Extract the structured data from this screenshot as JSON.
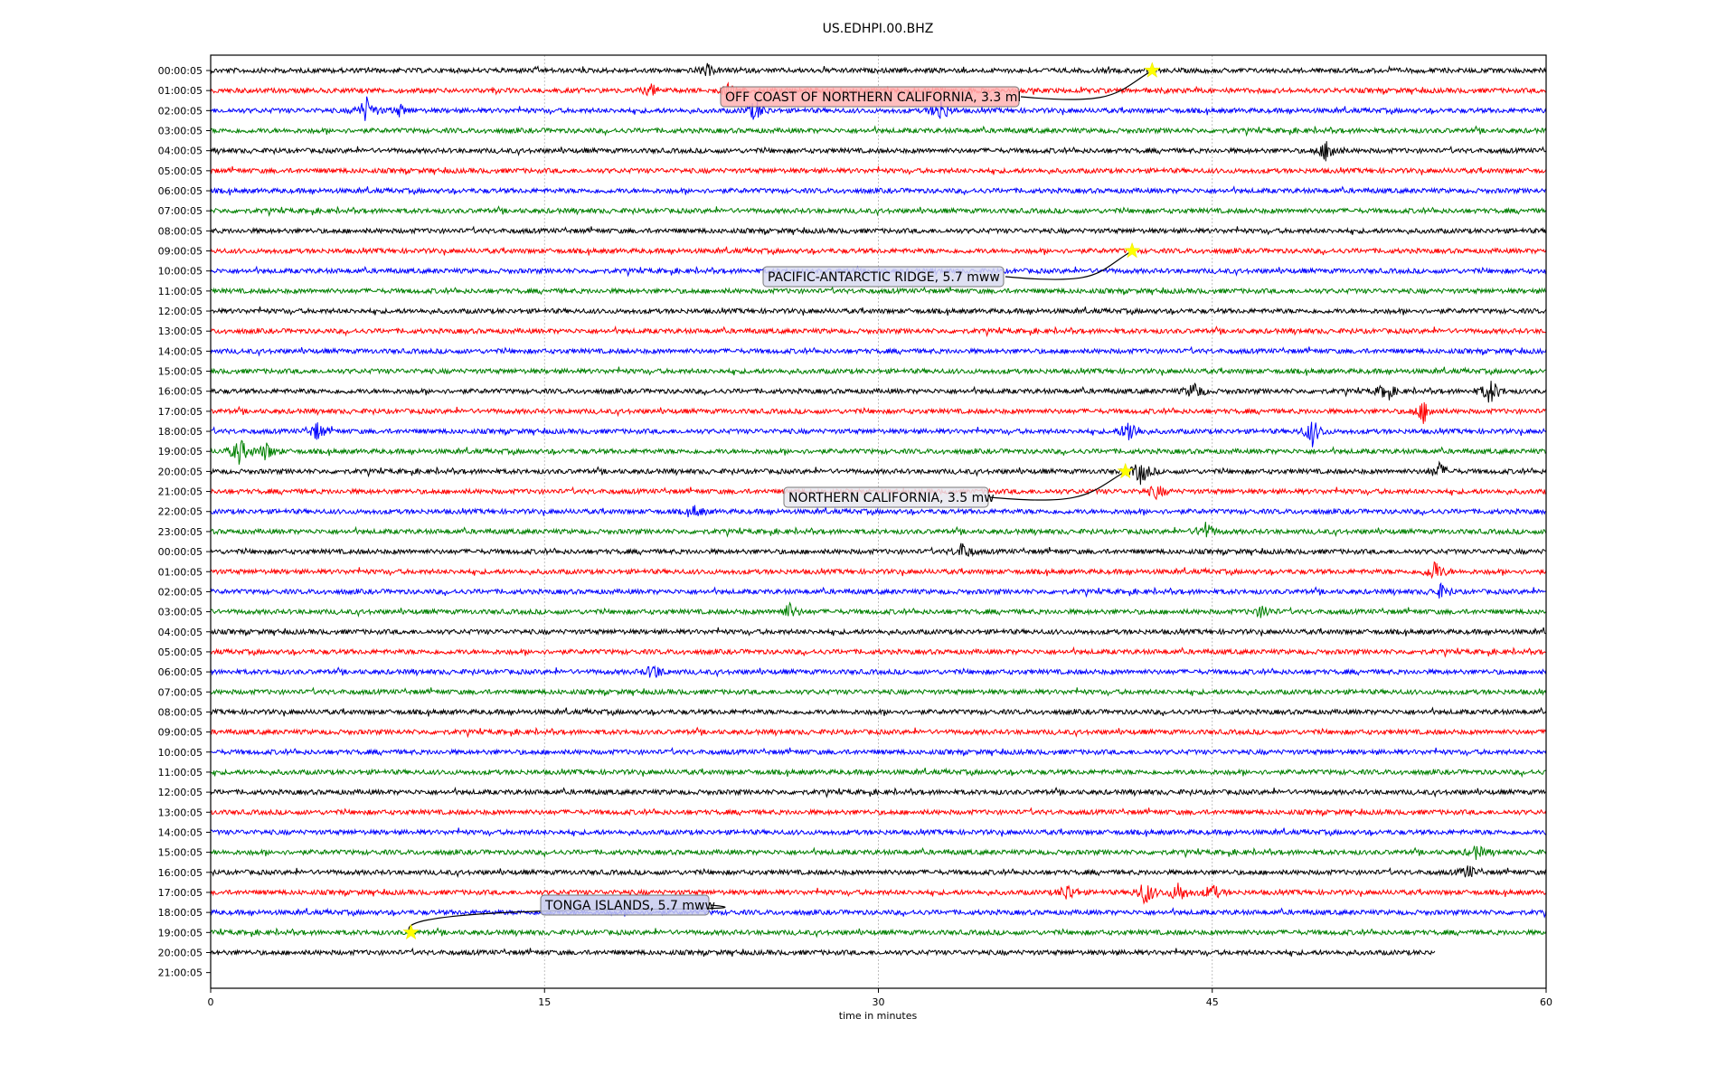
{
  "chart_data": {
    "type": "line",
    "title": "US.EDHPI.00.BHZ",
    "xlabel": "time in minutes",
    "ylabel": "",
    "xlim": [
      0,
      60
    ],
    "xticks": [
      "0",
      "15",
      "30",
      "45",
      "60"
    ],
    "grid": "vertical dotted at x ticks",
    "row_labels": [
      "00:00:05",
      "01:00:05",
      "02:00:05",
      "03:00:05",
      "04:00:05",
      "05:00:05",
      "06:00:05",
      "07:00:05",
      "08:00:05",
      "09:00:05",
      "10:00:05",
      "11:00:05",
      "12:00:05",
      "13:00:05",
      "14:00:05",
      "15:00:05",
      "16:00:05",
      "17:00:05",
      "18:00:05",
      "19:00:05",
      "20:00:05",
      "21:00:05",
      "22:00:05",
      "23:00:05",
      "00:00:05",
      "01:00:05",
      "02:00:05",
      "03:00:05",
      "04:00:05",
      "05:00:05",
      "06:00:05",
      "07:00:05",
      "08:00:05",
      "09:00:05",
      "10:00:05",
      "11:00:05",
      "12:00:05",
      "13:00:05",
      "14:00:05",
      "15:00:05",
      "16:00:05",
      "17:00:05",
      "18:00:05",
      "19:00:05",
      "20:00:05",
      "21:00:05"
    ],
    "trace_colors": [
      "#000000",
      "#ff0000",
      "#0000ff",
      "#008000"
    ],
    "trace_rows": 45,
    "last_trace_end_minute": 55,
    "bursts": [
      {
        "row": 0,
        "minute": 22.3,
        "amp": 1.2
      },
      {
        "row": 1,
        "minute": 19.8,
        "amp": 1.2
      },
      {
        "row": 1,
        "minute": 23.3,
        "amp": 1.5
      },
      {
        "row": 2,
        "minute": 7.0,
        "amp": 3
      },
      {
        "row": 2,
        "minute": 8.5,
        "amp": 1.2
      },
      {
        "row": 2,
        "minute": 24.5,
        "amp": 2.5
      },
      {
        "row": 2,
        "minute": 32.8,
        "amp": 2.5
      },
      {
        "row": 4,
        "minute": 50.2,
        "amp": 3
      },
      {
        "row": 16,
        "minute": 44.2,
        "amp": 2
      },
      {
        "row": 16,
        "minute": 52.8,
        "amp": 2
      },
      {
        "row": 16,
        "minute": 57.5,
        "amp": 3
      },
      {
        "row": 17,
        "minute": 54.5,
        "amp": 2.5
      },
      {
        "row": 18,
        "minute": 41.3,
        "amp": 3
      },
      {
        "row": 18,
        "minute": 49.5,
        "amp": 3
      },
      {
        "row": 18,
        "minute": 4.8,
        "amp": 2
      },
      {
        "row": 19,
        "minute": 1.3,
        "amp": 3
      },
      {
        "row": 19,
        "minute": 2.5,
        "amp": 2
      },
      {
        "row": 20,
        "minute": 41.8,
        "amp": 3
      },
      {
        "row": 20,
        "minute": 55.2,
        "amp": 1.8
      },
      {
        "row": 21,
        "minute": 42.5,
        "amp": 1.5
      },
      {
        "row": 22,
        "minute": 21.8,
        "amp": 1.2
      },
      {
        "row": 23,
        "minute": 44.7,
        "amp": 2
      },
      {
        "row": 24,
        "minute": 33.8,
        "amp": 2
      },
      {
        "row": 25,
        "minute": 55.0,
        "amp": 2.5
      },
      {
        "row": 26,
        "minute": 55.3,
        "amp": 1.5
      },
      {
        "row": 27,
        "minute": 26.0,
        "amp": 1.8
      },
      {
        "row": 27,
        "minute": 47.3,
        "amp": 1.5
      },
      {
        "row": 30,
        "minute": 19.9,
        "amp": 1.8
      },
      {
        "row": 39,
        "minute": 56.9,
        "amp": 1.5
      },
      {
        "row": 40,
        "minute": 56.5,
        "amp": 1.5
      },
      {
        "row": 41,
        "minute": 38.5,
        "amp": 2
      },
      {
        "row": 41,
        "minute": 42.0,
        "amp": 3
      },
      {
        "row": 41,
        "minute": 43.5,
        "amp": 2.5
      },
      {
        "row": 41,
        "minute": 45.0,
        "amp": 1.8
      }
    ],
    "events": [
      {
        "label": "OFF COAST OF NORTHERN CALIFORNIA, 3.3 ml",
        "minute": 42.3,
        "row": 0,
        "box_color": "#ffb3b3"
      },
      {
        "label": "PACIFIC-ANTARCTIC RIDGE, 5.7 mww",
        "minute": 41.4,
        "row": 9,
        "box_color": "#d8daf0"
      },
      {
        "label": "NORTHERN CALIFORNIA, 3.5 mw",
        "minute": 41.1,
        "row": 20,
        "box_color": "#e8e8ee"
      },
      {
        "label": "TONGA ISLANDS, 5.7 mww",
        "minute": 9.0,
        "row": 43,
        "box_color": "#c8cbee"
      }
    ]
  }
}
